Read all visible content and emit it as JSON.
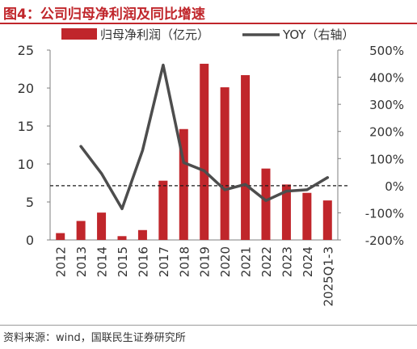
{
  "title": "图4：公司归母净利润及同比增速",
  "source": "资料来源：wind，国联民生证券研究所",
  "colors": {
    "title": "#c0262b",
    "bar": "#c0262b",
    "line": "#4d4d4d",
    "zero_line": "#1a1a1a",
    "text": "#333333"
  },
  "chart_data": {
    "type": "bar",
    "title": "图4：公司归母净利润及同比增速",
    "categories": [
      "2012",
      "2013",
      "2014",
      "2015",
      "2016",
      "2017",
      "2018",
      "2019",
      "2020",
      "2021",
      "2022",
      "2023",
      "2024",
      "2025Q1-3"
    ],
    "series": [
      {
        "name": "归母净利润（亿元）",
        "type": "bar",
        "axis": "left",
        "values": [
          0.9,
          2.5,
          3.6,
          0.5,
          1.3,
          7.8,
          14.6,
          23.2,
          20.1,
          21.7,
          9.4,
          7.3,
          6.2,
          5.2
        ]
      },
      {
        "name": "YOY（右轴）",
        "type": "line",
        "axis": "right",
        "values": [
          null,
          1.45,
          0.45,
          -0.85,
          1.3,
          4.45,
          0.85,
          0.55,
          -0.15,
          0.05,
          -0.55,
          -0.2,
          -0.15,
          0.3
        ]
      }
    ],
    "y_left": {
      "ylim": [
        0,
        25
      ],
      "ticks": [
        0,
        5,
        10,
        15,
        20,
        25
      ]
    },
    "y_right": {
      "ylim": [
        -2,
        5
      ],
      "ticks": [
        -2,
        -1,
        0,
        1,
        2,
        3,
        4,
        5
      ],
      "tick_labels": [
        "-200%",
        "-100%",
        "0%",
        "100%",
        "200%",
        "300%",
        "400%",
        "500%"
      ]
    },
    "reference_line": {
      "axis": "right",
      "value": 0,
      "style": "dashed"
    },
    "legend_position": "top",
    "grid": false
  }
}
